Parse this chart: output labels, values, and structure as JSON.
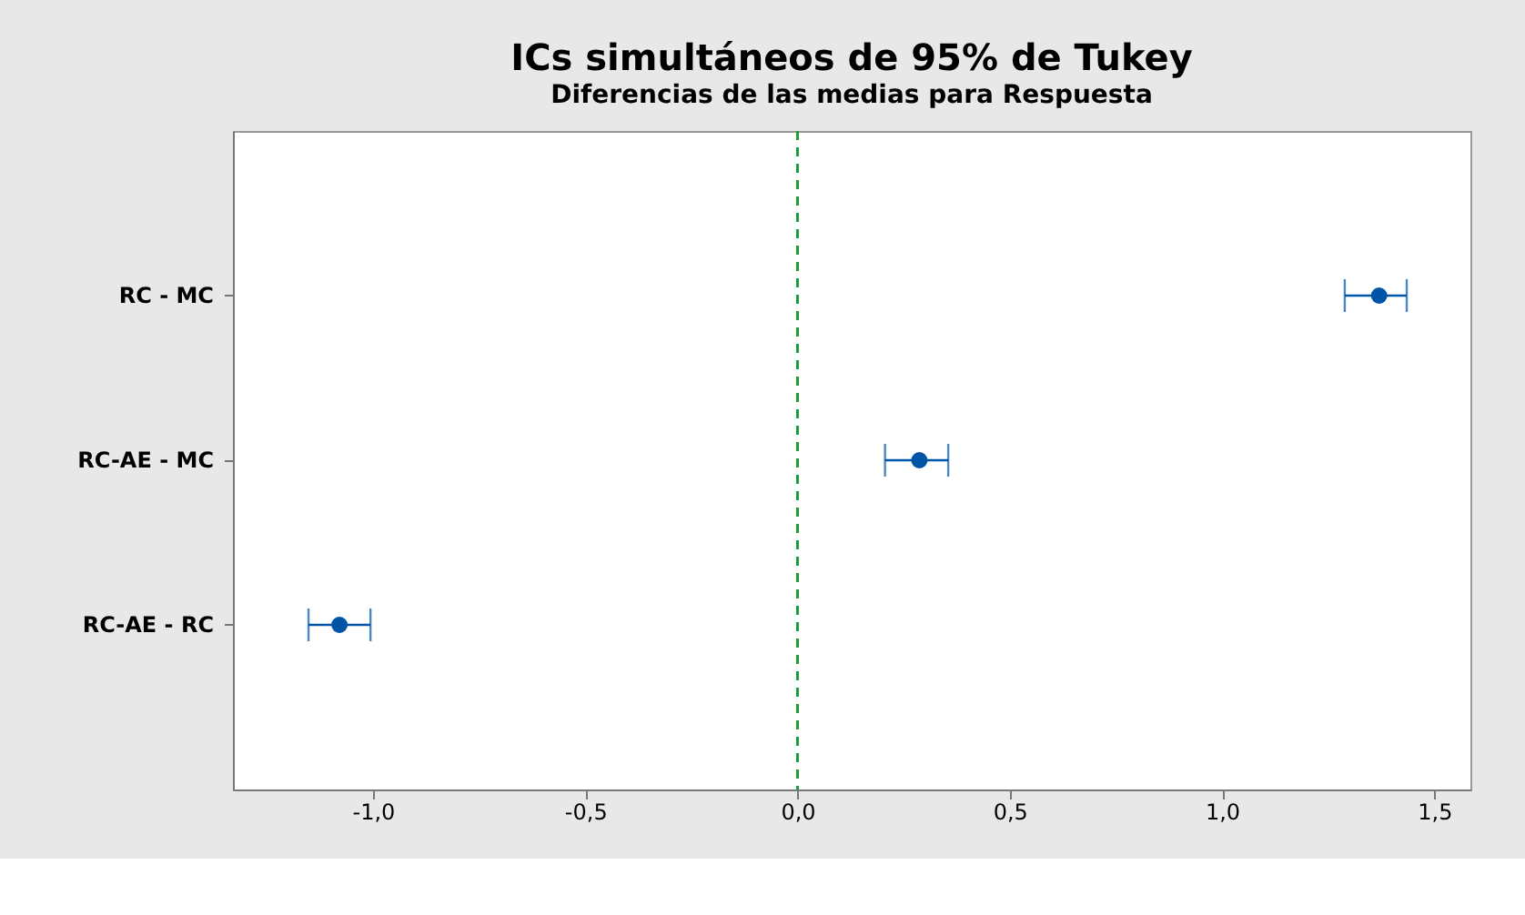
{
  "chart_data": {
    "type": "scatter",
    "orientation": "horizontal",
    "title": "ICs simultáneos de 95% de Tukey",
    "subtitle": "Diferencias de las medias para Respuesta",
    "categories": [
      "RC - MC",
      "RC-AE - MC",
      "RC-AE - RC"
    ],
    "series": [
      {
        "color": "#0054a6",
        "values": [
          1.37,
          0.287,
          -1.079
        ],
        "errors": [
          [
            1.289,
            1.435
          ],
          [
            0.206,
            0.355
          ],
          [
            -1.152,
            -1.006
          ]
        ]
      }
    ],
    "xlim": [
      -1.33,
      1.585
    ],
    "xticks": [
      {
        "value": -1.0,
        "label": "-1,0"
      },
      {
        "value": -0.5,
        "label": "-0,5"
      },
      {
        "value": 0.0,
        "label": "0,0"
      },
      {
        "value": 0.5,
        "label": "0,5"
      },
      {
        "value": 1.0,
        "label": "1,0"
      },
      {
        "value": 1.5,
        "label": "1,5"
      }
    ],
    "ref_lines": [
      {
        "axis": "x",
        "value": 0,
        "color": "#1a9e3a",
        "line_style": "dashed"
      }
    ],
    "marker": "circle",
    "grid": false
  }
}
